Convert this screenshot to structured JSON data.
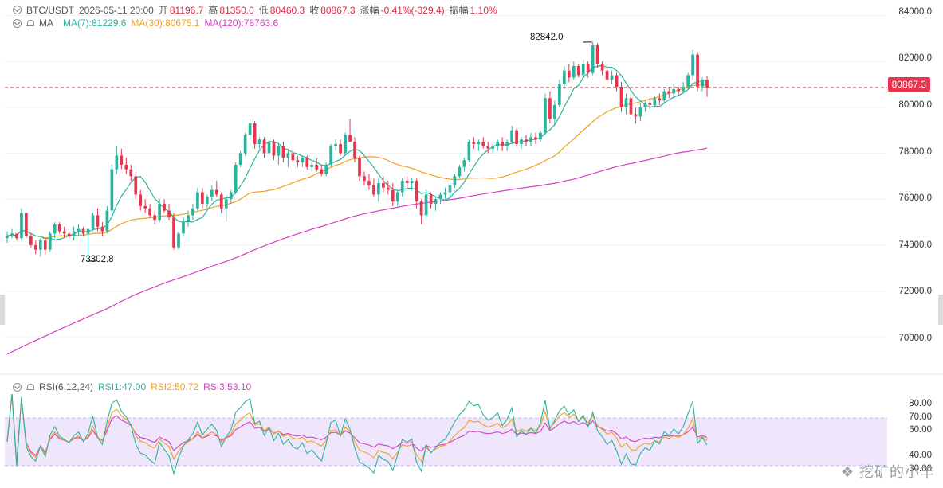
{
  "header": {
    "symbol": "BTC/USDT",
    "datetime": "2026-05-11 20:00",
    "open_label": "开",
    "open": "81196.7",
    "high_label": "高",
    "high": "81350.0",
    "low_label": "低",
    "low": "80460.3",
    "close_label": "收",
    "close": "80867.3",
    "change_label": "涨幅",
    "change": "-0.41%(-329.4)",
    "amp_label": "振幅",
    "amp": "1.10%"
  },
  "ma_legend": {
    "label": "MA",
    "ma7": "MA(7):81229.6",
    "ma30": "MA(30):80675.1",
    "ma120": "MA(120):78763.6"
  },
  "rsi_legend": {
    "label": "RSI(6,12,24)",
    "rsi1": "RSI1:47.00",
    "rsi2": "RSI2:50.72",
    "rsi3": "RSI3:53.10"
  },
  "price_axis": {
    "ticks": [
      "84000.0",
      "82000.0",
      "80000.0",
      "78000.0",
      "76000.0",
      "74000.0",
      "72000.0",
      "70000.0"
    ],
    "last_price": "80867.3"
  },
  "rsi_axis": {
    "ticks": [
      "80.00",
      "70.00",
      "60.00",
      "40.00",
      "30.00"
    ]
  },
  "annotations": {
    "high": "82842.0",
    "low": "73302.8"
  },
  "watermark": "挖矿的小羊",
  "colors": {
    "up": "#2bb39e",
    "down": "#e8344e",
    "ma7": "#2bb39e",
    "ma30": "#f0a020",
    "ma120": "#d63fc5",
    "rsi1": "#2bb39e",
    "rsi2": "#f0a020",
    "rsi3": "#d63fc5",
    "rsi_band": "#efe6fb"
  },
  "chart_data": {
    "type": "candlestick",
    "interval_note": "",
    "price_ylim": [
      69000,
      84400
    ],
    "rsi_ylim": [
      20,
      90
    ],
    "rsi_band": [
      30,
      70
    ],
    "candles_ohlc": [
      [
        74300,
        74600,
        74100,
        74400
      ],
      [
        74400,
        74700,
        74300,
        74500
      ],
      [
        74500,
        74500,
        74200,
        74300
      ],
      [
        74300,
        75600,
        74200,
        75400
      ],
      [
        75400,
        75400,
        74300,
        74400
      ],
      [
        74400,
        74500,
        73900,
        74000
      ],
      [
        74000,
        74200,
        73600,
        73800
      ],
      [
        73800,
        74300,
        73500,
        74200
      ],
      [
        74200,
        74300,
        73600,
        73800
      ],
      [
        73800,
        74600,
        73700,
        74500
      ],
      [
        74500,
        75000,
        74300,
        74900
      ],
      [
        74900,
        75000,
        74500,
        74600
      ],
      [
        74600,
        74800,
        74300,
        74500
      ],
      [
        74500,
        74600,
        74300,
        74400
      ],
      [
        74400,
        74800,
        74200,
        74600
      ],
      [
        74600,
        74900,
        74400,
        74700
      ],
      [
        74700,
        74800,
        74400,
        74500
      ],
      [
        74500,
        74600,
        73300,
        74700
      ],
      [
        74700,
        75400,
        74600,
        75300
      ],
      [
        75300,
        75600,
        74600,
        74800
      ],
      [
        74800,
        75000,
        74400,
        74600
      ],
      [
        74600,
        75700,
        74500,
        75500
      ],
      [
        75500,
        77500,
        75400,
        77300
      ],
      [
        77300,
        78300,
        77100,
        77900
      ],
      [
        77900,
        78200,
        77300,
        77500
      ],
      [
        77500,
        77800,
        77100,
        77300
      ],
      [
        77300,
        77500,
        76800,
        77000
      ],
      [
        77000,
        77100,
        76000,
        76200
      ],
      [
        76200,
        76400,
        75500,
        75700
      ],
      [
        75700,
        76000,
        75400,
        75600
      ],
      [
        75600,
        75800,
        75200,
        75300
      ],
      [
        75300,
        75500,
        74900,
        75100
      ],
      [
        75100,
        76000,
        75000,
        75800
      ],
      [
        75800,
        76000,
        75400,
        75500
      ],
      [
        75500,
        75800,
        75100,
        75200
      ],
      [
        75200,
        75400,
        73800,
        73900
      ],
      [
        73900,
        74600,
        73800,
        74500
      ],
      [
        74500,
        75200,
        74400,
        75000
      ],
      [
        75000,
        75500,
        74800,
        75300
      ],
      [
        75300,
        75800,
        75100,
        75600
      ],
      [
        75600,
        76500,
        75500,
        76300
      ],
      [
        76300,
        76500,
        75600,
        75800
      ],
      [
        75800,
        76200,
        75600,
        76100
      ],
      [
        76100,
        76600,
        75900,
        76400
      ],
      [
        76400,
        76800,
        76100,
        76200
      ],
      [
        76200,
        76300,
        75400,
        75600
      ],
      [
        75600,
        76200,
        75000,
        76000
      ],
      [
        76000,
        76400,
        75800,
        76300
      ],
      [
        76300,
        77600,
        76200,
        77500
      ],
      [
        77500,
        78100,
        77400,
        78000
      ],
      [
        78000,
        78900,
        77900,
        78800
      ],
      [
        78800,
        79500,
        78600,
        79300
      ],
      [
        79300,
        79400,
        78200,
        78400
      ],
      [
        78400,
        78700,
        78200,
        78600
      ],
      [
        78600,
        78700,
        77800,
        78000
      ],
      [
        78000,
        78700,
        77900,
        78500
      ],
      [
        78500,
        78600,
        77700,
        77900
      ],
      [
        77900,
        78400,
        77500,
        78300
      ],
      [
        78300,
        78500,
        77600,
        77800
      ],
      [
        77800,
        78200,
        77400,
        78000
      ],
      [
        78000,
        78300,
        77600,
        77700
      ],
      [
        77700,
        77900,
        77400,
        77600
      ],
      [
        77600,
        77900,
        77400,
        77800
      ],
      [
        77800,
        77900,
        77300,
        77400
      ],
      [
        77400,
        77600,
        77200,
        77500
      ],
      [
        77500,
        77800,
        77200,
        77300
      ],
      [
        77300,
        77500,
        77000,
        77100
      ],
      [
        77100,
        77600,
        77000,
        77500
      ],
      [
        77500,
        78400,
        77400,
        78300
      ],
      [
        78300,
        78600,
        78100,
        78400
      ],
      [
        78400,
        78600,
        77900,
        78000
      ],
      [
        78000,
        78900,
        77900,
        78800
      ],
      [
        78800,
        79500,
        78700,
        78500
      ],
      [
        78500,
        78700,
        77600,
        77800
      ],
      [
        77800,
        77900,
        76800,
        77000
      ],
      [
        77000,
        77200,
        76600,
        76800
      ],
      [
        76800,
        77100,
        76400,
        76600
      ],
      [
        76600,
        76900,
        76100,
        76200
      ],
      [
        76200,
        76900,
        75900,
        76700
      ],
      [
        76700,
        77000,
        76300,
        76500
      ],
      [
        76500,
        76800,
        76200,
        76400
      ],
      [
        76400,
        76700,
        75700,
        75900
      ],
      [
        75900,
        76400,
        75700,
        76300
      ],
      [
        76300,
        76900,
        76100,
        76800
      ],
      [
        76800,
        77000,
        76500,
        76700
      ],
      [
        76700,
        76900,
        76400,
        76800
      ],
      [
        76800,
        76900,
        75600,
        75900
      ],
      [
        75900,
        76000,
        74900,
        75300
      ],
      [
        75300,
        76400,
        75200,
        76200
      ],
      [
        76200,
        76300,
        75600,
        75800
      ],
      [
        75800,
        76100,
        75500,
        76000
      ],
      [
        76000,
        76300,
        75800,
        76200
      ],
      [
        76200,
        76500,
        76000,
        76300
      ],
      [
        76300,
        76700,
        76100,
        76600
      ],
      [
        76600,
        77100,
        76500,
        77000
      ],
      [
        77000,
        77500,
        76900,
        77400
      ],
      [
        77400,
        77800,
        77200,
        77700
      ],
      [
        77700,
        78600,
        77600,
        78500
      ],
      [
        78500,
        78700,
        78200,
        78400
      ],
      [
        78400,
        78600,
        78100,
        78500
      ],
      [
        78500,
        78700,
        78200,
        78300
      ],
      [
        78300,
        78500,
        78000,
        78200
      ],
      [
        78200,
        78400,
        78000,
        78300
      ],
      [
        78300,
        78600,
        78100,
        78500
      ],
      [
        78500,
        78700,
        78100,
        78300
      ],
      [
        78300,
        78600,
        78100,
        78500
      ],
      [
        78500,
        79200,
        78400,
        79000
      ],
      [
        79000,
        79100,
        78300,
        78400
      ],
      [
        78400,
        78700,
        78200,
        78600
      ],
      [
        78600,
        78800,
        78300,
        78500
      ],
      [
        78500,
        78900,
        78300,
        78700
      ],
      [
        78700,
        78900,
        78400,
        78600
      ],
      [
        78600,
        79000,
        78500,
        78900
      ],
      [
        78900,
        80600,
        78800,
        80400
      ],
      [
        80400,
        80700,
        79300,
        79500
      ],
      [
        79500,
        80300,
        79200,
        80100
      ],
      [
        80100,
        81200,
        80000,
        81000
      ],
      [
        81000,
        81800,
        80800,
        81600
      ],
      [
        81600,
        81900,
        81100,
        81300
      ],
      [
        81300,
        82000,
        81200,
        81800
      ],
      [
        81800,
        81900,
        81300,
        81400
      ],
      [
        81400,
        82100,
        81300,
        81900
      ],
      [
        81900,
        82000,
        81300,
        81500
      ],
      [
        81500,
        82842,
        81400,
        82700
      ],
      [
        82700,
        82800,
        81700,
        81900
      ],
      [
        81900,
        82000,
        81400,
        81600
      ],
      [
        81600,
        81900,
        81000,
        81200
      ],
      [
        81200,
        81600,
        81000,
        81400
      ],
      [
        81400,
        81500,
        80700,
        80900
      ],
      [
        80900,
        81100,
        79800,
        80000
      ],
      [
        80000,
        80600,
        79700,
        80400
      ],
      [
        80400,
        80500,
        79500,
        79700
      ],
      [
        79700,
        80000,
        79300,
        79600
      ],
      [
        79600,
        80200,
        79400,
        80000
      ],
      [
        80000,
        80300,
        79800,
        80200
      ],
      [
        80200,
        80400,
        79900,
        80100
      ],
      [
        80100,
        80500,
        80000,
        80400
      ],
      [
        80400,
        80600,
        80100,
        80300
      ],
      [
        80300,
        80800,
        80200,
        80700
      ],
      [
        80700,
        80900,
        80400,
        80600
      ],
      [
        80600,
        81000,
        80400,
        80800
      ],
      [
        80800,
        80900,
        80500,
        80700
      ],
      [
        80700,
        81100,
        80600,
        80900
      ],
      [
        80900,
        81500,
        80800,
        81400
      ],
      [
        81400,
        82500,
        81200,
        82300
      ],
      [
        82300,
        82400,
        80700,
        80900
      ],
      [
        80900,
        81300,
        80700,
        81200
      ],
      [
        81196.7,
        81350,
        80460.3,
        80867.3
      ]
    ]
  }
}
